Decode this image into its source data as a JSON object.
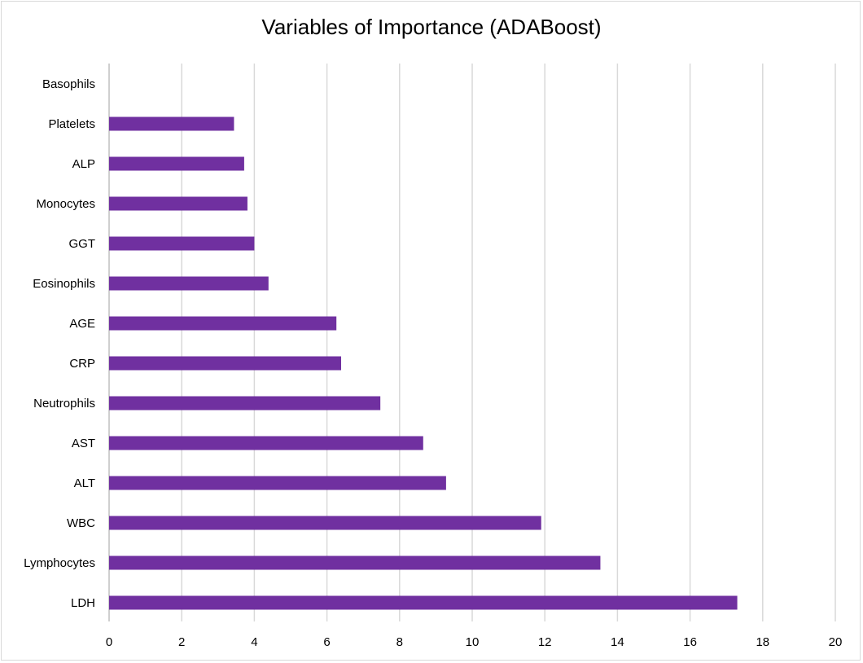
{
  "chart_data": {
    "type": "bar",
    "orientation": "horizontal",
    "title": "Variables of Importance (ADABoost)",
    "xlabel": "",
    "ylabel": "",
    "categories": [
      "LDH",
      "Lymphocytes",
      "WBC",
      "ALT",
      "AST",
      "Neutrophils",
      "CRP",
      "AGE",
      "Eosinophils",
      "GGT",
      "Monocytes",
      "ALP",
      "Platelets",
      "Basophils"
    ],
    "values": [
      17.3,
      13.53,
      11.9,
      9.28,
      8.65,
      7.47,
      6.39,
      6.26,
      4.39,
      4.0,
      3.81,
      3.72,
      3.44,
      0
    ],
    "xlim": [
      0,
      20
    ],
    "xticks": [
      0,
      2,
      4,
      6,
      8,
      10,
      12,
      14,
      16,
      18,
      20
    ],
    "grid": "vertical",
    "legend": "none",
    "bar_color": "#7030a0",
    "grid_color": "#d9d9d9"
  }
}
